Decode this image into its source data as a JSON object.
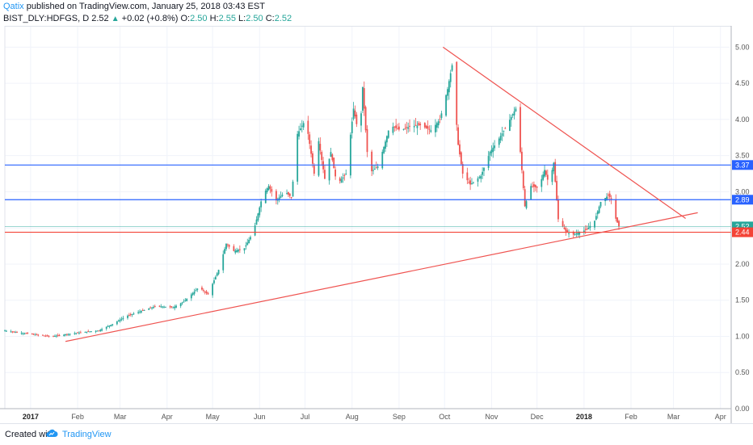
{
  "header": {
    "author": "Qatix",
    "published_text": "published on TradingView.com, January 25, 2018 03:43 EST",
    "symbol": "BIST_DLY:HDFGS, D",
    "last": "2.52",
    "arrow": "▲",
    "change": "+0.02 (+0.8%)",
    "o_label": "O:",
    "o_value": "2.50",
    "h_label": "H:",
    "h_value": "2.55",
    "l_label": "L:",
    "l_value": "2.50",
    "c_label": "C:",
    "c_value": "2.52"
  },
  "footer": {
    "created_with": "Created with",
    "brand": "TradingView"
  },
  "colors": {
    "up": "#26a69a",
    "down": "#ef5350",
    "support_line": "#f44336",
    "resistance_blue": "#2962ff",
    "last_price": "#26a69a",
    "trendline": "#ef5350"
  },
  "chart_data": {
    "type": "candlestick",
    "symbol": "BIST_DLY:HDFGS",
    "interval": "D",
    "xlim": [
      "2016-12-15",
      "2018-04-07"
    ],
    "ylim": [
      0,
      5.25
    ],
    "y_ticks": [
      "0.00",
      "0.50",
      "1.00",
      "1.50",
      "2.00",
      "2.50",
      "3.00",
      "3.50",
      "4.00",
      "4.50",
      "5.00"
    ],
    "x_ticks": [
      {
        "label": "2017",
        "date": "2017-01-01",
        "bold": true
      },
      {
        "label": "Feb",
        "date": "2017-02-01"
      },
      {
        "label": "Mar",
        "date": "2017-03-01"
      },
      {
        "label": "Apr",
        "date": "2017-04-01"
      },
      {
        "label": "May",
        "date": "2017-05-01"
      },
      {
        "label": "Jun",
        "date": "2017-06-01"
      },
      {
        "label": "Jul",
        "date": "2017-07-01"
      },
      {
        "label": "Aug",
        "date": "2017-08-01"
      },
      {
        "label": "Sep",
        "date": "2017-09-01"
      },
      {
        "label": "Oct",
        "date": "2017-10-01"
      },
      {
        "label": "Nov",
        "date": "2017-11-01"
      },
      {
        "label": "Dec",
        "date": "2017-12-01"
      },
      {
        "label": "2018",
        "date": "2018-01-01",
        "bold": true
      },
      {
        "label": "Feb",
        "date": "2018-02-01"
      },
      {
        "label": "Mar",
        "date": "2018-03-01"
      },
      {
        "label": "Apr",
        "date": "2018-04-01"
      }
    ],
    "close_path": [
      [
        "2016-12-15",
        1.08
      ],
      [
        "2016-12-25",
        1.05
      ],
      [
        "2017-01-05",
        1.02
      ],
      [
        "2017-01-15",
        1.0
      ],
      [
        "2017-01-25",
        1.03
      ],
      [
        "2017-02-05",
        1.06
      ],
      [
        "2017-02-15",
        1.08
      ],
      [
        "2017-02-25",
        1.18
      ],
      [
        "2017-03-05",
        1.28
      ],
      [
        "2017-03-15",
        1.35
      ],
      [
        "2017-03-25",
        1.42
      ],
      [
        "2017-04-05",
        1.4
      ],
      [
        "2017-04-12",
        1.48
      ],
      [
        "2017-04-22",
        1.68
      ],
      [
        "2017-04-28",
        1.58
      ],
      [
        "2017-05-05",
        1.92
      ],
      [
        "2017-05-10",
        2.28
      ],
      [
        "2017-05-15",
        2.18
      ],
      [
        "2017-05-22",
        2.22
      ],
      [
        "2017-05-28",
        2.45
      ],
      [
        "2017-06-03",
        2.95
      ],
      [
        "2017-06-07",
        3.08
      ],
      [
        "2017-06-12",
        2.88
      ],
      [
        "2017-06-18",
        3.0
      ],
      [
        "2017-06-22",
        2.92
      ],
      [
        "2017-06-26",
        3.8
      ],
      [
        "2017-06-30",
        3.95
      ],
      [
        "2017-07-03",
        3.8
      ],
      [
        "2017-07-07",
        3.25
      ],
      [
        "2017-07-10",
        3.7
      ],
      [
        "2017-07-14",
        3.18
      ],
      [
        "2017-07-18",
        3.55
      ],
      [
        "2017-07-22",
        3.1
      ],
      [
        "2017-07-28",
        3.25
      ],
      [
        "2017-08-02",
        4.15
      ],
      [
        "2017-08-06",
        3.72
      ],
      [
        "2017-08-08",
        4.45
      ],
      [
        "2017-08-12",
        3.25
      ],
      [
        "2017-08-18",
        3.35
      ],
      [
        "2017-08-22",
        3.62
      ],
      [
        "2017-08-26",
        3.92
      ],
      [
        "2017-09-02",
        3.85
      ],
      [
        "2017-09-08",
        3.9
      ],
      [
        "2017-09-15",
        3.92
      ],
      [
        "2017-09-22",
        3.85
      ],
      [
        "2017-09-28",
        4.0
      ],
      [
        "2017-10-03",
        4.42
      ],
      [
        "2017-10-06",
        4.75
      ],
      [
        "2017-10-10",
        3.65
      ],
      [
        "2017-10-13",
        3.25
      ],
      [
        "2017-10-18",
        3.1
      ],
      [
        "2017-10-25",
        3.22
      ],
      [
        "2017-10-31",
        3.55
      ],
      [
        "2017-11-05",
        3.7
      ],
      [
        "2017-11-10",
        3.88
      ],
      [
        "2017-11-17",
        4.15
      ],
      [
        "2017-11-20",
        3.55
      ],
      [
        "2017-11-23",
        2.8
      ],
      [
        "2017-11-27",
        3.08
      ],
      [
        "2017-12-02",
        3.05
      ],
      [
        "2017-12-06",
        3.3
      ],
      [
        "2017-12-09",
        3.1
      ],
      [
        "2017-12-12",
        3.4
      ],
      [
        "2017-12-15",
        2.62
      ],
      [
        "2017-12-20",
        2.45
      ],
      [
        "2017-12-24",
        2.4
      ],
      [
        "2017-12-28",
        2.43
      ],
      [
        "2018-01-03",
        2.48
      ],
      [
        "2018-01-08",
        2.6
      ],
      [
        "2018-01-12",
        2.86
      ],
      [
        "2018-01-17",
        2.95
      ],
      [
        "2018-01-19",
        2.9
      ],
      [
        "2018-01-21",
        2.68
      ],
      [
        "2018-01-24",
        2.52
      ]
    ],
    "horizontal_levels": [
      {
        "price": 3.37,
        "label": "3.37",
        "color": "#2962ff"
      },
      {
        "price": 2.89,
        "label": "2.89",
        "color": "#2962ff"
      },
      {
        "price": 2.52,
        "label": "2.52",
        "color": "#26a69a"
      },
      {
        "price": 2.44,
        "label": "2.44",
        "color": "#f44336"
      }
    ],
    "trendlines": [
      {
        "from": [
          "2017-01-24",
          0.93
        ],
        "to": [
          "2018-03-17",
          2.71
        ],
        "color": "#ef5350"
      },
      {
        "from": [
          "2017-09-30",
          5.0
        ],
        "to": [
          "2018-03-09",
          2.63
        ],
        "color": "#ef5350"
      }
    ],
    "grid": true
  }
}
